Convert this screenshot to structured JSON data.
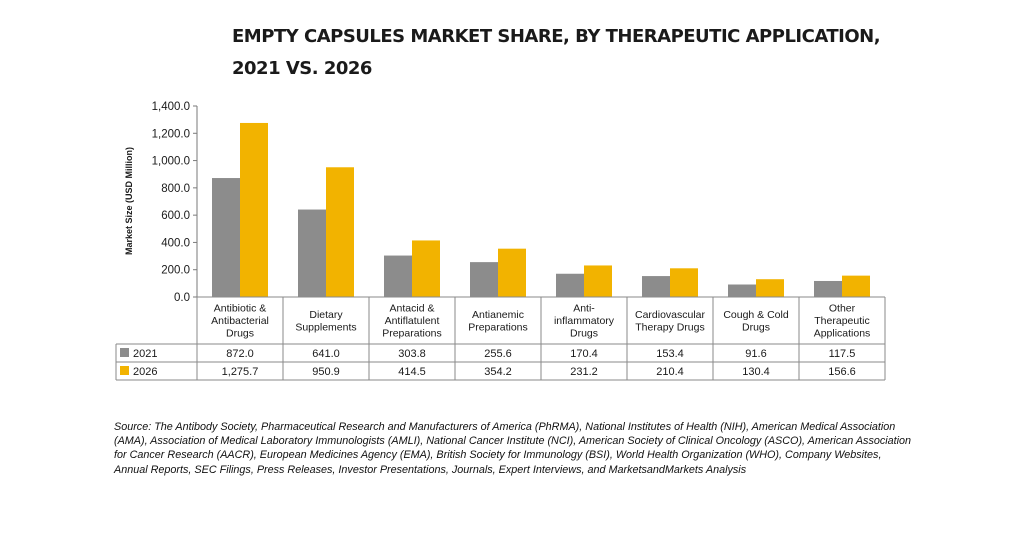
{
  "title_line1": "EMPTY CAPSULES MARKET SHARE, BY THERAPEUTIC APPLICATION,",
  "title_line2": "2021 VS. 2026",
  "source": "Source: The Antibody Society, Pharmaceutical Research and Manufacturers of America (PhRMA), National Institutes of Health (NIH), American Medical Association (AMA), Association of Medical Laboratory Immunologists (AMLI), National Cancer Institute (NCI), American Society of Clinical Oncology (ASCO), American Association for Cancer Research (AACR), European Medicines Agency (EMA), British Society for Immunology (BSI), World Health Organization (WHO), Company Websites, Annual Reports, SEC Filings, Press Releases, Investor Presentations, Journals, Expert Interviews, and MarketsandMarkets Analysis",
  "chart_data": {
    "type": "bar",
    "ylabel": "Market Size (USD Million)",
    "ylim": [
      0,
      1400
    ],
    "yticks": [
      "0.0",
      "200.0",
      "400.0",
      "600.0",
      "800.0",
      "1,000.0",
      "1,200.0",
      "1,400.0"
    ],
    "grid": false,
    "legend": "data-table-rows",
    "categories": [
      [
        "Antibiotic &",
        "Antibacterial",
        "Drugs"
      ],
      [
        "Dietary",
        "Supplements"
      ],
      [
        "Antacid &",
        "Antiflatulent",
        "Preparations"
      ],
      [
        "Antianemic",
        "Preparations"
      ],
      [
        "Anti-",
        "inflammatory",
        "Drugs"
      ],
      [
        "Cardiovascular",
        "Therapy Drugs"
      ],
      [
        "Cough & Cold",
        "Drugs"
      ],
      [
        "Other",
        "Therapeutic",
        "Applications"
      ]
    ],
    "series": [
      {
        "name": "2021",
        "color": "#8c8c8c",
        "values": [
          872.0,
          641.0,
          303.8,
          255.6,
          170.4,
          153.4,
          91.6,
          117.5
        ],
        "labels": [
          "872.0",
          "641.0",
          "303.8",
          "255.6",
          "170.4",
          "153.4",
          "91.6",
          "117.5"
        ]
      },
      {
        "name": "2026",
        "color": "#f2b300",
        "values": [
          1275.7,
          950.9,
          414.5,
          354.2,
          231.2,
          210.4,
          130.4,
          156.6
        ],
        "labels": [
          "1,275.7",
          "950.9",
          "414.5",
          "354.2",
          "231.2",
          "210.4",
          "130.4",
          "156.6"
        ]
      }
    ]
  }
}
